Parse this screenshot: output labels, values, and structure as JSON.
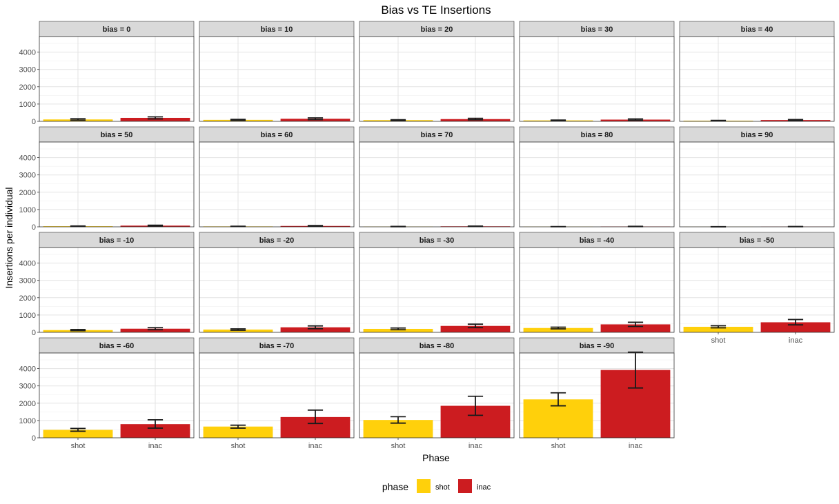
{
  "chart_data": {
    "type": "bar",
    "title": "Bias vs TE Insertions",
    "xlabel": "Phase",
    "ylabel": "Insertions per individual",
    "categories": [
      "shot",
      "inac"
    ],
    "y_ticks": [
      "0",
      "1000",
      "2000",
      "3000",
      "4000"
    ],
    "ylim": [
      0,
      4900
    ],
    "grid": true,
    "colors": {
      "shot": "#FFD00B",
      "inac": "#CC1C20"
    },
    "legend": {
      "title": "phase",
      "position": "bottom",
      "items": [
        {
          "label": "shot",
          "color": "#FFD00B"
        },
        {
          "label": "inac",
          "color": "#CC1C20"
        }
      ]
    },
    "panels": [
      {
        "label": "bias = 0",
        "shot": {
          "value": 110,
          "low": 70,
          "high": 150
        },
        "inac": {
          "value": 200,
          "low": 140,
          "high": 260
        }
      },
      {
        "label": "bias = 10",
        "shot": {
          "value": 85,
          "low": 60,
          "high": 115
        },
        "inac": {
          "value": 150,
          "low": 100,
          "high": 200
        }
      },
      {
        "label": "bias = 20",
        "shot": {
          "value": 70,
          "low": 45,
          "high": 95
        },
        "inac": {
          "value": 130,
          "low": 90,
          "high": 175
        }
      },
      {
        "label": "bias = 30",
        "shot": {
          "value": 55,
          "low": 35,
          "high": 75
        },
        "inac": {
          "value": 100,
          "low": 65,
          "high": 140
        }
      },
      {
        "label": "bias = 40",
        "shot": {
          "value": 40,
          "low": 25,
          "high": 55
        },
        "inac": {
          "value": 75,
          "low": 45,
          "high": 105
        }
      },
      {
        "label": "bias = 50",
        "shot": {
          "value": 35,
          "low": 20,
          "high": 50
        },
        "inac": {
          "value": 70,
          "low": 45,
          "high": 95
        }
      },
      {
        "label": "bias = 60",
        "shot": {
          "value": 25,
          "low": 15,
          "high": 35
        },
        "inac": {
          "value": 50,
          "low": 30,
          "high": 75
        }
      },
      {
        "label": "bias = 70",
        "shot": {
          "value": 15,
          "low": 8,
          "high": 22
        },
        "inac": {
          "value": 30,
          "low": 18,
          "high": 45
        }
      },
      {
        "label": "bias = 80",
        "shot": {
          "value": 10,
          "low": 5,
          "high": 15
        },
        "inac": {
          "value": 20,
          "low": 10,
          "high": 30
        }
      },
      {
        "label": "bias = 90",
        "shot": {
          "value": 5,
          "low": 2,
          "high": 8
        },
        "inac": {
          "value": 10,
          "low": 5,
          "high": 18
        }
      },
      {
        "label": "bias = -10",
        "shot": {
          "value": 130,
          "low": 95,
          "high": 165
        },
        "inac": {
          "value": 210,
          "low": 150,
          "high": 270
        }
      },
      {
        "label": "bias = -20",
        "shot": {
          "value": 160,
          "low": 120,
          "high": 200
        },
        "inac": {
          "value": 290,
          "low": 210,
          "high": 370
        }
      },
      {
        "label": "bias = -30",
        "shot": {
          "value": 200,
          "low": 150,
          "high": 250
        },
        "inac": {
          "value": 370,
          "low": 270,
          "high": 470
        }
      },
      {
        "label": "bias = -40",
        "shot": {
          "value": 250,
          "low": 200,
          "high": 300
        },
        "inac": {
          "value": 460,
          "low": 340,
          "high": 580
        }
      },
      {
        "label": "bias = -50",
        "shot": {
          "value": 320,
          "low": 260,
          "high": 380
        },
        "inac": {
          "value": 580,
          "low": 430,
          "high": 740
        }
      },
      {
        "label": "bias = -60",
        "shot": {
          "value": 460,
          "low": 380,
          "high": 540
        },
        "inac": {
          "value": 790,
          "low": 560,
          "high": 1040
        }
      },
      {
        "label": "bias = -70",
        "shot": {
          "value": 650,
          "low": 560,
          "high": 730
        },
        "inac": {
          "value": 1200,
          "low": 830,
          "high": 1600
        }
      },
      {
        "label": "bias = -80",
        "shot": {
          "value": 1030,
          "low": 850,
          "high": 1220
        },
        "inac": {
          "value": 1850,
          "low": 1300,
          "high": 2400
        }
      },
      {
        "label": "bias = -90",
        "shot": {
          "value": 2220,
          "low": 1850,
          "high": 2600
        },
        "inac": {
          "value": 3920,
          "low": 2880,
          "high": 4950
        }
      }
    ]
  }
}
